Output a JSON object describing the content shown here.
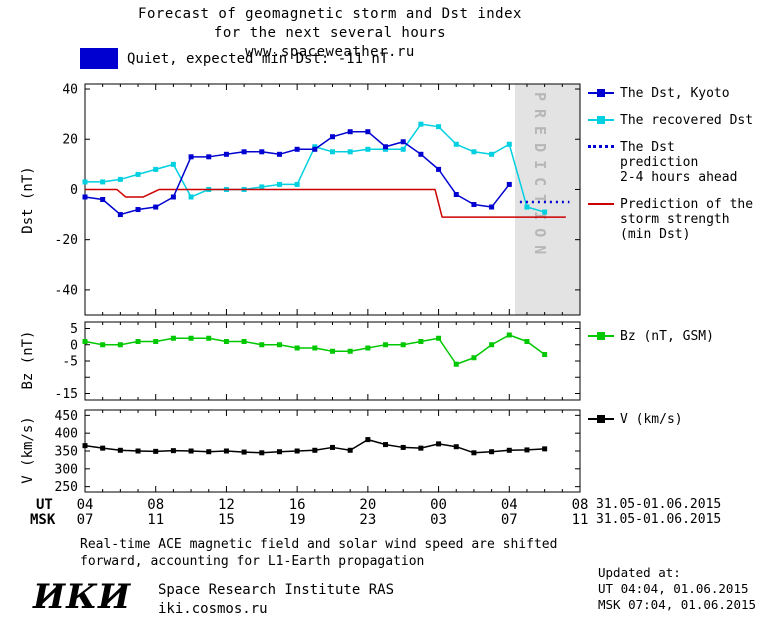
{
  "title": {
    "line1": "Forecast of geomagnetic storm and Dst index",
    "line2": "for the next several hours",
    "line3": "www.spaceweather.ru"
  },
  "banner": {
    "label": "Quiet, expected min Dst: -11 nT",
    "swatch_color": "#0000d0"
  },
  "prediction_band": {
    "label": "PREDICTION",
    "start_hour": 28.35,
    "fill": "#e3e3e3",
    "text_color": "#b6b6b6"
  },
  "colors": {
    "dst_kyoto": "#0000d0",
    "recovered_dst": "#00d0e0",
    "storm_prediction": "#cc0000",
    "bz": "#00c800",
    "v": "#000000"
  },
  "chart_data": [
    {
      "type": "line",
      "ylabel": "Dst (nT)",
      "xlim": [
        4,
        32
      ],
      "ylim": [
        -50,
        42
      ],
      "yticks": [
        40,
        20,
        0,
        -20,
        -40
      ],
      "ytick_labels": [
        "40",
        "20",
        "0",
        "-20",
        "-40"
      ],
      "series": [
        {
          "name": "The recovered Dst",
          "color": "#00d0e0",
          "marker": "square",
          "style": "solid",
          "x": [
            4,
            5,
            6,
            7,
            8,
            9,
            10,
            11,
            12,
            13,
            14,
            15,
            16,
            17,
            18,
            19,
            20,
            21,
            22,
            23,
            24,
            25,
            26,
            27,
            28,
            29,
            30
          ],
          "values": [
            3,
            3,
            4,
            6,
            8,
            10,
            -3,
            0,
            0,
            0,
            1,
            2,
            2,
            17,
            15,
            15,
            16,
            16,
            16,
            26,
            25,
            18,
            15,
            14,
            18,
            -7,
            -9
          ]
        },
        {
          "name": "Prediction of the storm strength (min Dst)",
          "color": "#cc0000",
          "marker": "none",
          "style": "solid",
          "x": [
            4,
            5.8,
            6.3,
            7.3,
            8.2,
            23.8,
            24.2,
            31.2
          ],
          "values": [
            0,
            0,
            -3,
            -3,
            0,
            0,
            -11,
            -11
          ]
        },
        {
          "name": "The Dst, Kyoto",
          "color": "#0000d0",
          "marker": "square",
          "style": "solid",
          "x": [
            4,
            5,
            6,
            7,
            8,
            9,
            10,
            11,
            12,
            13,
            14,
            15,
            16,
            17,
            18,
            19,
            20,
            21,
            22,
            23,
            24,
            25,
            26,
            27,
            28
          ],
          "values": [
            -3,
            -4,
            -10,
            -8,
            -7,
            -3,
            13,
            13,
            14,
            15,
            15,
            14,
            16,
            16,
            21,
            23,
            23,
            17,
            19,
            14,
            8,
            -2,
            -6,
            -7,
            2
          ]
        },
        {
          "name": "The Dst prediction 2-4 hours ahead",
          "color": "#0000d0",
          "marker": "none",
          "style": "dotted",
          "x": [
            28.6,
            29.6,
            30.6,
            31.4
          ],
          "values": [
            -5,
            -5,
            -5,
            -5
          ]
        }
      ],
      "legend": [
        {
          "color": "#0000d0",
          "style": "line-square",
          "lines": [
            "The Dst, Kyoto"
          ]
        },
        {
          "color": "#00d0e0",
          "style": "line-square",
          "lines": [
            "The recovered Dst"
          ]
        },
        {
          "color": "#0000d0",
          "style": "dotted",
          "lines": [
            "The Dst prediction",
            "2-4 hours ahead"
          ]
        },
        {
          "color": "#cc0000",
          "style": "line",
          "lines": [
            "Prediction of the",
            "storm strength",
            "(min Dst)"
          ]
        }
      ]
    },
    {
      "type": "line",
      "ylabel": "Bz (nT)",
      "xlim": [
        4,
        32
      ],
      "ylim": [
        -17,
        7
      ],
      "yticks": [
        5,
        0,
        -5,
        -10,
        -15
      ],
      "ytick_labels": [
        "5",
        "0",
        "-5",
        "",
        "-15"
      ],
      "series": [
        {
          "name": "Bz (nT, GSM)",
          "color": "#00c800",
          "marker": "square",
          "style": "solid",
          "x": [
            4,
            5,
            6,
            7,
            8,
            9,
            10,
            11,
            12,
            13,
            14,
            15,
            16,
            17,
            18,
            19,
            20,
            21,
            22,
            23,
            24,
            25,
            26,
            27,
            28,
            29,
            30
          ],
          "values": [
            1,
            0,
            0,
            1,
            1,
            2,
            2,
            2,
            1,
            1,
            0,
            0,
            -1,
            -1,
            -2,
            -2,
            -1,
            0,
            0,
            1,
            2,
            -6,
            -4,
            0,
            3,
            1,
            -3
          ]
        }
      ],
      "legend": [
        {
          "color": "#00c800",
          "style": "line-square",
          "lines": [
            "Bz (nT, GSM)"
          ]
        }
      ]
    },
    {
      "type": "line",
      "ylabel": "V (km/s)",
      "xlim": [
        4,
        32
      ],
      "ylim": [
        235,
        465
      ],
      "yticks": [
        450,
        400,
        350,
        300,
        250
      ],
      "ytick_labels": [
        "450",
        "400",
        "350",
        "300",
        "250"
      ],
      "series": [
        {
          "name": "V (km/s)",
          "color": "#000000",
          "marker": "square",
          "style": "solid",
          "x": [
            4,
            5,
            6,
            7,
            8,
            9,
            10,
            11,
            12,
            13,
            14,
            15,
            16,
            17,
            18,
            19,
            20,
            21,
            22,
            23,
            24,
            25,
            26,
            27,
            28,
            29,
            30
          ],
          "values": [
            365,
            358,
            352,
            350,
            349,
            351,
            350,
            348,
            350,
            347,
            345,
            348,
            350,
            352,
            360,
            352,
            382,
            368,
            360,
            358,
            370,
            362,
            345,
            348,
            352,
            353,
            356
          ]
        }
      ],
      "legend": [
        {
          "color": "#000000",
          "style": "line-square",
          "lines": [
            "V (km/s)"
          ]
        }
      ]
    }
  ],
  "x_axis": {
    "ut_label": "UT",
    "msk_label": "MSK",
    "tick_hours": [
      4,
      8,
      12,
      16,
      20,
      24,
      28,
      32
    ],
    "ut_ticks": [
      "04",
      "08",
      "12",
      "16",
      "20",
      "00",
      "04",
      "08"
    ],
    "msk_ticks": [
      "07",
      "11",
      "15",
      "19",
      "23",
      "03",
      "07",
      "11"
    ],
    "ut_date": "31.05-01.06.2015",
    "msk_date": "31.05-01.06.2015"
  },
  "footer": {
    "note_line1": "Real-time ACE magnetic field and solar wind speed are shifted",
    "note_line2": "forward, accounting for L1-Earth propagation",
    "updated_label": "Updated at:",
    "updated_ut": "UT  04:04, 01.06.2015",
    "updated_msk": "MSK 07:04, 01.06.2015",
    "logo": "ИКИ",
    "institute": "Space Research Institute RAS",
    "site": "iki.cosmos.ru"
  }
}
